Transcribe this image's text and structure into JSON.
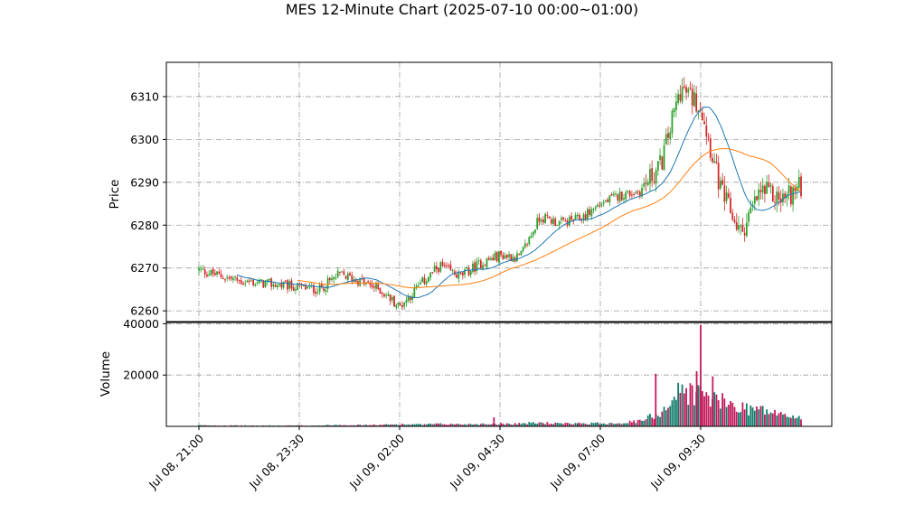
{
  "chart_data": {
    "type": "candlestick",
    "title": "MES 12-Minute Chart (2025-07-10 00:00~01:00)",
    "price_panel": {
      "ylabel": "Price",
      "ylim": [
        6257.5,
        6318
      ],
      "yticks": [
        6260,
        6270,
        6280,
        6290,
        6300,
        6310
      ],
      "grid": true
    },
    "volume_panel": {
      "ylabel": "Volume",
      "ylim": [
        0,
        40500
      ],
      "yticks": [
        20000,
        40000
      ],
      "grid": true
    },
    "x_axis": {
      "tick_labels": [
        "Jul 08, 21:00",
        "Jul 08, 23:30",
        "Jul 09, 02:00",
        "Jul 09, 04:30",
        "Jul 09, 07:00",
        "Jul 09, 09:30"
      ],
      "label_rotation_deg": 45
    },
    "colors": {
      "up": "#2ca02c",
      "down": "#d62728",
      "ma_fast": "#1f77b4",
      "ma_slow": "#ff7f0e",
      "volume_up": "#0e7c6b",
      "volume_down": "#c2185b",
      "grid": "#9e9e9e"
    },
    "anchors_x_hours": [
      0,
      1,
      2,
      3,
      3.5,
      4,
      4.5,
      5,
      5.5,
      6,
      6.5,
      7,
      7.5,
      8,
      8.5,
      9,
      9.5,
      10,
      10.5,
      11,
      11.5,
      12,
      12.5,
      13,
      13.5,
      14,
      14.5,
      15
    ],
    "anchors_close": [
      6269.5,
      6267.0,
      6266.0,
      6265.0,
      6268.5,
      6267.0,
      6265.0,
      6261.0,
      6266.0,
      6270.5,
      6268.0,
      6271.0,
      6273.0,
      6272.5,
      6282.0,
      6280.5,
      6281.5,
      6285.0,
      6287.0,
      6288.0,
      6294.0,
      6312.0,
      6308.0,
      6288.0,
      6278.0,
      6288.0,
      6286.0,
      6289.0
    ],
    "anchors_volume": [
      400,
      300,
      300,
      350,
      600,
      500,
      550,
      800,
      700,
      900,
      800,
      900,
      1000,
      1100,
      1400,
      1000,
      1100,
      1200,
      1300,
      2000,
      5500,
      14000,
      12500,
      9500,
      7500,
      6500,
      4500,
      3500
    ],
    "volume_spikes": [
      {
        "x_hours": 7.35,
        "volume": 3500
      },
      {
        "x_hours": 9.47,
        "volume": 1500
      },
      {
        "x_hours": 11.38,
        "volume": 20500
      },
      {
        "x_hours": 12.4,
        "volume": 21500
      },
      {
        "x_hours": 12.5,
        "volume": 39500
      },
      {
        "x_hours": 12.8,
        "volume": 19500
      }
    ]
  }
}
